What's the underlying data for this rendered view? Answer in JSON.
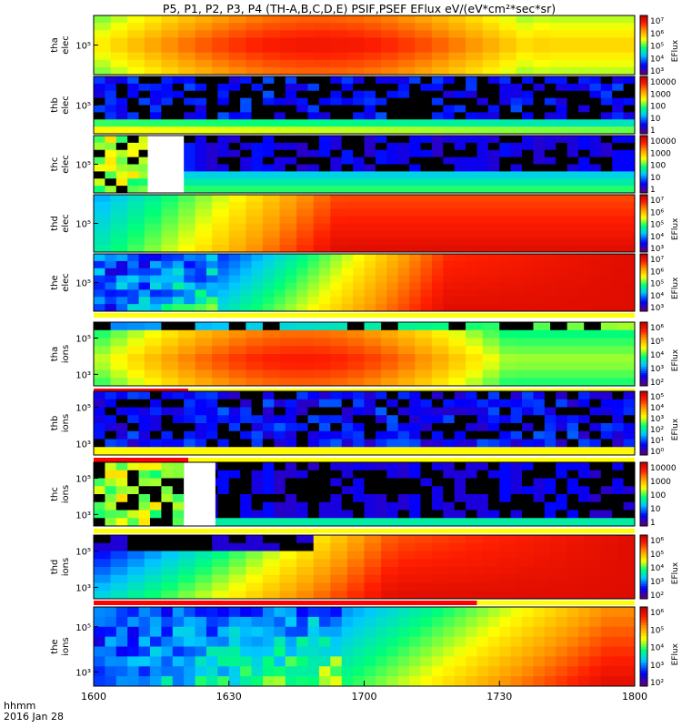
{
  "title": "P5, P1, P2, P3, P4 (TH-A,B,C,D,E) PSIF,PSEF EFlux eV/(eV*cm²*sec*sr)",
  "footer": {
    "line1": "hhmm",
    "line2": "2016 Jan 28"
  },
  "colorbar_label": "EFlux",
  "chart_data": {
    "type": "heatmap",
    "x_ticks": [
      "1600",
      "1630",
      "1700",
      "1730",
      "1800"
    ],
    "x_range": [
      "16:00",
      "18:00"
    ],
    "y_scale": "log",
    "panels": [
      {
        "probe": "tha",
        "species": "elec",
        "y_ticks": [
          "10⁵"
        ],
        "colorbar_ticks": [
          "10⁷",
          "10⁶",
          "10⁵",
          "10⁴",
          "10³"
        ],
        "colorbar_label": "EFlux",
        "data_gaps": [],
        "bar": "none"
      },
      {
        "probe": "thb",
        "species": "elec",
        "y_ticks": [
          "10⁵"
        ],
        "colorbar_ticks": [
          "10000",
          "1000",
          "100",
          "10",
          "1"
        ],
        "colorbar_label": "",
        "data_gaps": [],
        "bar": "none"
      },
      {
        "probe": "thc",
        "species": "elec",
        "y_ticks": [
          "10⁵"
        ],
        "colorbar_ticks": [
          "10000",
          "1000",
          "100",
          "10",
          "1"
        ],
        "colorbar_label": "",
        "data_gaps": [
          [
            "16:12",
            "16:20"
          ]
        ],
        "bar": "none"
      },
      {
        "probe": "thd",
        "species": "elec",
        "y_ticks": [
          "10⁵"
        ],
        "colorbar_ticks": [
          "10⁷",
          "10⁶",
          "10⁵",
          "10⁴",
          "10³"
        ],
        "colorbar_label": "EFlux",
        "data_gaps": [],
        "bar": "none"
      },
      {
        "probe": "the",
        "species": "elec",
        "y_ticks": [
          "10⁵"
        ],
        "colorbar_ticks": [
          "10⁷",
          "10⁶",
          "10⁵",
          "10⁴",
          "10³"
        ],
        "colorbar_label": "EFlux",
        "data_gaps": [],
        "bar": "yellow"
      },
      {
        "probe": "tha",
        "species": "ions",
        "y_ticks": [
          "10⁵",
          "10³"
        ],
        "colorbar_ticks": [
          "10⁶",
          "10⁵",
          "10⁴",
          "10³",
          "10²"
        ],
        "colorbar_label": "EFlux",
        "data_gaps": [],
        "bar": "red-then-yellow",
        "bar_switch": "16:21"
      },
      {
        "probe": "thb",
        "species": "ions",
        "y_ticks": [
          "10⁵",
          "10³"
        ],
        "colorbar_ticks": [
          "10⁵",
          "10⁴",
          "10³",
          "10²",
          "10¹",
          "10⁰"
        ],
        "colorbar_label": "EFlux",
        "data_gaps": [],
        "bar": "red-then-yellow",
        "bar_switch": "16:21"
      },
      {
        "probe": "thc",
        "species": "ions",
        "y_ticks": [
          "10⁵",
          "10³"
        ],
        "colorbar_ticks": [
          "10000",
          "1000",
          "100",
          "10",
          "1"
        ],
        "colorbar_label": "",
        "data_gaps": [
          [
            "16:20",
            "16:27"
          ]
        ],
        "bar": "yellow"
      },
      {
        "probe": "thd",
        "species": "ions",
        "y_ticks": [
          "10⁵",
          "10³"
        ],
        "colorbar_ticks": [
          "10⁶",
          "10⁵",
          "10⁴",
          "10³",
          "10²"
        ],
        "colorbar_label": "EFlux",
        "data_gaps": [],
        "bar": "red-then-yellow",
        "bar_switch": "17:25"
      },
      {
        "probe": "the",
        "species": "ions",
        "y_ticks": [
          "10⁵",
          "10³"
        ],
        "colorbar_ticks": [
          "10⁶",
          "10⁵",
          "10⁴",
          "10³",
          "10²"
        ],
        "colorbar_label": "EFlux",
        "data_gaps": [],
        "bar": "none"
      }
    ]
  }
}
